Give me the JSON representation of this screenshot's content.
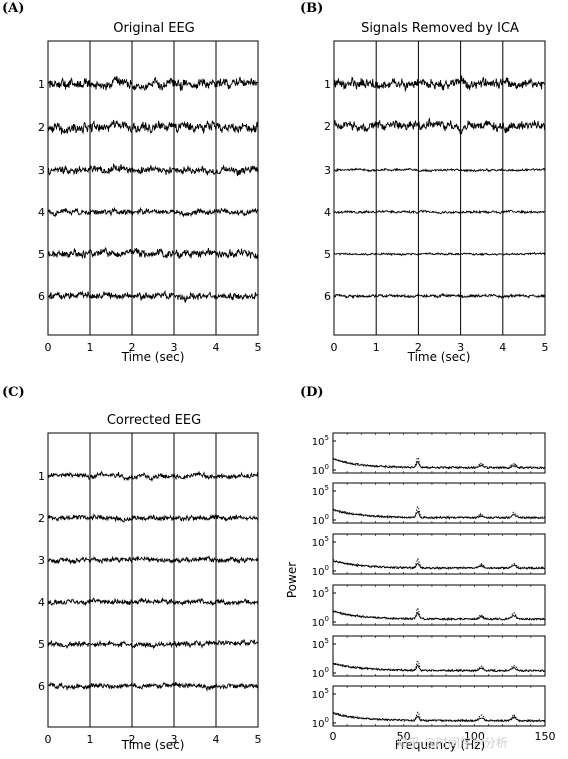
{
  "figure": {
    "watermark": "知乎 @时间序列分析"
  },
  "chart_data": [
    {
      "panel_label": "(A)",
      "type": "line",
      "title": "Original EEG",
      "xlabel": "Time (sec)",
      "x_ticks": [
        "0",
        "1",
        "2",
        "3",
        "4",
        "5"
      ],
      "xlim": [
        0,
        5
      ],
      "grid": "vertical lines at each second",
      "channels": [
        "1",
        "2",
        "3",
        "4",
        "5",
        "6"
      ],
      "amplitude": [
        0.55,
        0.55,
        0.42,
        0.3,
        0.45,
        0.4
      ]
    },
    {
      "panel_label": "(B)",
      "type": "line",
      "title": "Signals Removed by ICA",
      "xlabel": "Time (sec)",
      "x_ticks": [
        "0",
        "1",
        "2",
        "3",
        "4",
        "5"
      ],
      "xlim": [
        0,
        5
      ],
      "grid": "vertical lines at each second",
      "channels": [
        "1",
        "2",
        "3",
        "4",
        "5",
        "6"
      ],
      "amplitude": [
        0.55,
        0.5,
        0.12,
        0.12,
        0.1,
        0.15
      ]
    },
    {
      "panel_label": "(C)",
      "type": "line",
      "title": "Corrected EEG",
      "xlabel": "Time (sec)",
      "x_ticks": [
        "0",
        "1",
        "2",
        "3",
        "4",
        "5"
      ],
      "xlim": [
        0,
        5
      ],
      "grid": "vertical lines at each second",
      "channels": [
        "1",
        "2",
        "3",
        "4",
        "5",
        "6"
      ],
      "amplitude": [
        0.28,
        0.28,
        0.28,
        0.28,
        0.3,
        0.28
      ]
    },
    {
      "panel_label": "(D)",
      "type": "line",
      "xlabel": "Frequency (Hz)",
      "ylabel": "Power",
      "x_ticks": [
        "0",
        "50",
        "100",
        "150"
      ],
      "xlim": [
        0,
        150
      ],
      "y_tick_base": "10",
      "y_tick_exponents": [
        "5",
        "0"
      ],
      "yscale": "log",
      "series": [
        {
          "style": "solid"
        },
        {
          "style": "dotted"
        }
      ],
      "spectra": [
        {
          "channel": 1,
          "baseline_start": 1.5,
          "baseline_end": 0.4,
          "peaks": [
            {
              "freq": 60,
              "height": 1.7
            },
            {
              "freq": 105,
              "height": 0.7
            },
            {
              "freq": 128,
              "height": 0.6
            }
          ]
        },
        {
          "channel": 2,
          "baseline_start": 1.4,
          "baseline_end": 0.4,
          "peaks": [
            {
              "freq": 60,
              "height": 1.9
            },
            {
              "freq": 105,
              "height": 0.6
            },
            {
              "freq": 128,
              "height": 0.8
            }
          ]
        },
        {
          "channel": 3,
          "baseline_start": 1.3,
          "baseline_end": 0.5,
          "peaks": [
            {
              "freq": 60,
              "height": 1.5
            },
            {
              "freq": 105,
              "height": 0.7
            },
            {
              "freq": 128,
              "height": 0.9
            }
          ]
        },
        {
          "channel": 4,
          "baseline_start": 1.4,
          "baseline_end": 0.5,
          "peaks": [
            {
              "freq": 60,
              "height": 1.7
            },
            {
              "freq": 105,
              "height": 0.7
            },
            {
              "freq": 128,
              "height": 1.0
            }
          ]
        },
        {
          "channel": 5,
          "baseline_start": 1.3,
          "baseline_end": 0.4,
          "peaks": [
            {
              "freq": 60,
              "height": 1.6
            },
            {
              "freq": 105,
              "height": 0.8
            },
            {
              "freq": 128,
              "height": 0.9
            }
          ]
        },
        {
          "channel": 6,
          "baseline_start": 1.3,
          "baseline_end": 0.4,
          "peaks": [
            {
              "freq": 60,
              "height": 1.4
            },
            {
              "freq": 105,
              "height": 0.9
            },
            {
              "freq": 128,
              "height": 1.0
            }
          ]
        }
      ]
    }
  ]
}
